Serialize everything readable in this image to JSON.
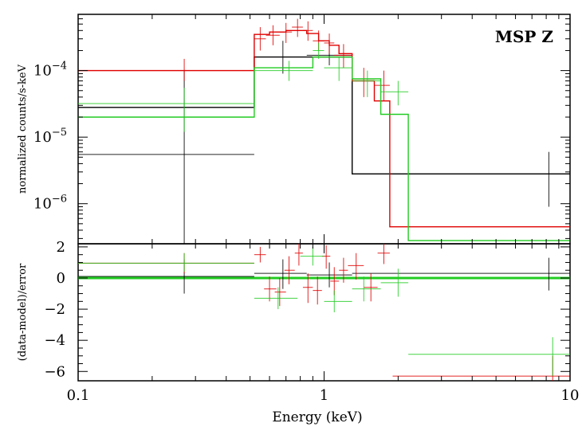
{
  "chart_data": [
    {
      "type": "line",
      "panel": "spectrum",
      "title": "MSP Z",
      "xlabel": "",
      "ylabel": "normalized counts/s-keV",
      "x_scale": "log",
      "y_scale": "log",
      "xlim": [
        0.1,
        10
      ],
      "ylim": [
        2.5e-07,
        0.0007
      ],
      "y_ticks": [
        {
          "value": 1e-06,
          "base": "10",
          "exp": "−6"
        },
        {
          "value": 1e-05,
          "base": "10",
          "exp": "−5"
        },
        {
          "value": 0.0001,
          "base": "10",
          "exp": "−4"
        }
      ],
      "series": [
        {
          "color": "#000000",
          "model": {
            "x": [
              0.1,
              0.52,
              0.52,
              1.3,
              1.3,
              10
            ],
            "y": [
              2.8e-05,
              2.8e-05,
              0.00016,
              0.00016,
              2.8e-06,
              2.8e-06
            ]
          },
          "points": [
            {
              "x": 0.27,
              "y": 5.5e-06,
              "xlo": 0.1,
              "xhi": 0.52,
              "ylo": 2.5e-07,
              "yhi": 0.0001
            },
            {
              "x": 0.68,
              "y": 0.00016,
              "xlo": 0.52,
              "xhi": 0.85,
              "ylo": 9e-05,
              "yhi": 0.00028
            },
            {
              "x": 1.05,
              "y": 0.00017,
              "xlo": 0.85,
              "xhi": 1.3,
              "ylo": 0.00012,
              "yhi": 0.00024
            },
            {
              "x": 8.2,
              "y": 2.8e-06,
              "xlo": 1.3,
              "xhi": 10,
              "ylo": 9e-07,
              "yhi": 6e-06
            }
          ]
        },
        {
          "color": "#e00000",
          "model": {
            "x": [
              0.1,
              0.52,
              0.52,
              0.6,
              0.6,
              0.7,
              0.7,
              0.85,
              0.85,
              0.95,
              0.95,
              1.05,
              1.05,
              1.15,
              1.15,
              1.3,
              1.3,
              1.6,
              1.6,
              1.85,
              1.85,
              10
            ],
            "y": [
              0.0001,
              0.0001,
              0.00035,
              0.00035,
              0.00038,
              0.00038,
              0.0004,
              0.0004,
              0.00036,
              0.00036,
              0.00028,
              0.00028,
              0.00024,
              0.00024,
              0.00018,
              0.00018,
              7e-05,
              7e-05,
              3.5e-05,
              3.5e-05,
              4.5e-07,
              4.5e-07
            ]
          },
          "points": [
            {
              "x": 0.27,
              "y": 0.0001,
              "xlo": 0.1,
              "xhi": 0.52,
              "ylo": 7e-05,
              "yhi": 0.00015
            },
            {
              "x": 0.55,
              "y": 0.0003,
              "xlo": 0.52,
              "xhi": 0.58,
              "ylo": 0.0002,
              "yhi": 0.00045
            },
            {
              "x": 0.62,
              "y": 0.00034,
              "xlo": 0.58,
              "xhi": 0.66,
              "ylo": 0.00024,
              "yhi": 0.00048
            },
            {
              "x": 0.7,
              "y": 0.00038,
              "xlo": 0.66,
              "xhi": 0.74,
              "ylo": 0.00026,
              "yhi": 0.00052
            },
            {
              "x": 0.78,
              "y": 0.00045,
              "xlo": 0.74,
              "xhi": 0.82,
              "ylo": 0.00032,
              "yhi": 0.0006
            },
            {
              "x": 0.86,
              "y": 0.0004,
              "xlo": 0.82,
              "xhi": 0.9,
              "ylo": 0.00028,
              "yhi": 0.00055
            },
            {
              "x": 0.95,
              "y": 0.00028,
              "xlo": 0.9,
              "xhi": 1.0,
              "ylo": 0.0002,
              "yhi": 0.0004
            },
            {
              "x": 1.05,
              "y": 0.00026,
              "xlo": 1.0,
              "xhi": 1.1,
              "ylo": 0.00018,
              "yhi": 0.00036
            },
            {
              "x": 1.2,
              "y": 0.00017,
              "xlo": 1.1,
              "xhi": 1.3,
              "ylo": 0.00011,
              "yhi": 0.00025
            },
            {
              "x": 1.45,
              "y": 7e-05,
              "xlo": 1.3,
              "xhi": 1.6,
              "ylo": 4e-05,
              "yhi": 0.00011
            },
            {
              "x": 1.75,
              "y": 6e-05,
              "xlo": 1.6,
              "xhi": 1.85,
              "ylo": 3.5e-05,
              "yhi": 0.0001
            }
          ]
        },
        {
          "color": "#22cc22",
          "model": {
            "x": [
              0.1,
              0.52,
              0.52,
              0.9,
              0.9,
              1.3,
              1.3,
              1.7,
              1.7,
              2.2,
              2.2,
              10
            ],
            "y": [
              2e-05,
              2e-05,
              0.00011,
              0.00011,
              0.00016,
              0.00016,
              7.5e-05,
              7.5e-05,
              2.2e-05,
              2.2e-05,
              2.8e-07,
              2.8e-07
            ]
          },
          "points": [
            {
              "x": 0.27,
              "y": 3.2e-05,
              "xlo": 0.1,
              "xhi": 0.52,
              "ylo": 1.2e-05,
              "yhi": 5.5e-05
            },
            {
              "x": 0.72,
              "y": 0.0001,
              "xlo": 0.52,
              "xhi": 0.9,
              "ylo": 7e-05,
              "yhi": 0.00014
            },
            {
              "x": 0.95,
              "y": 0.0002,
              "xlo": 0.9,
              "xhi": 1.0,
              "ylo": 0.00015,
              "yhi": 0.00026
            },
            {
              "x": 1.15,
              "y": 0.00011,
              "xlo": 1.0,
              "xhi": 1.3,
              "ylo": 7e-05,
              "yhi": 0.00016
            },
            {
              "x": 1.5,
              "y": 7e-05,
              "xlo": 1.3,
              "xhi": 1.7,
              "ylo": 4e-05,
              "yhi": 0.0001
            },
            {
              "x": 2.0,
              "y": 4.8e-05,
              "xlo": 1.7,
              "xhi": 2.2,
              "ylo": 3e-05,
              "yhi": 7e-05
            }
          ]
        }
      ]
    },
    {
      "type": "scatter",
      "panel": "residuals",
      "title": "",
      "xlabel": "Energy (keV)",
      "ylabel": "(data-model)/error",
      "x_scale": "log",
      "xlim": [
        0.1,
        10
      ],
      "ylim": [
        -6.6,
        2.2
      ],
      "x_ticks": [
        {
          "value": 0.1,
          "label": "0.1"
        },
        {
          "value": 1,
          "label": "1"
        },
        {
          "value": 10,
          "label": "10"
        }
      ],
      "y_ticks": [
        {
          "value": -6,
          "label": "−6"
        },
        {
          "value": -4,
          "label": "−4"
        },
        {
          "value": -2,
          "label": "−2"
        },
        {
          "value": 0,
          "label": "0"
        },
        {
          "value": 2,
          "label": "2"
        }
      ],
      "zero_line_color": "#22cc22",
      "series": [
        {
          "color": "#000000",
          "points": [
            {
              "x": 0.27,
              "y": 0.1,
              "xlo": 0.1,
              "xhi": 0.52,
              "ylo": -1.0,
              "yhi": 1.2
            },
            {
              "x": 0.68,
              "y": 0.3,
              "xlo": 0.52,
              "xhi": 0.85,
              "ylo": -0.7,
              "yhi": 1.2
            },
            {
              "x": 1.05,
              "y": 0.2,
              "xlo": 0.85,
              "xhi": 1.3,
              "ylo": -0.6,
              "yhi": 1.0
            },
            {
              "x": 8.2,
              "y": 0.3,
              "xlo": 1.3,
              "xhi": 10,
              "ylo": -0.8,
              "yhi": 1.3
            }
          ]
        },
        {
          "color": "#e00000",
          "points": [
            {
              "x": 0.27,
              "y": 0.95,
              "xlo": 0.1,
              "xhi": 0.52,
              "ylo": 0.3,
              "yhi": 1.6
            },
            {
              "x": 0.55,
              "y": 1.5,
              "xlo": 0.52,
              "xhi": 0.58,
              "ylo": 1.0,
              "yhi": 2.0
            },
            {
              "x": 0.6,
              "y": -0.7,
              "xlo": 0.57,
              "xhi": 0.64,
              "ylo": -1.5,
              "yhi": 0.1
            },
            {
              "x": 0.66,
              "y": -0.9,
              "xlo": 0.63,
              "xhi": 0.7,
              "ylo": -1.8,
              "yhi": 0.0
            },
            {
              "x": 0.72,
              "y": 0.5,
              "xlo": 0.69,
              "xhi": 0.76,
              "ylo": -0.4,
              "yhi": 1.4
            },
            {
              "x": 0.79,
              "y": 1.6,
              "xlo": 0.76,
              "xhi": 0.82,
              "ylo": 0.8,
              "yhi": 2.2
            },
            {
              "x": 0.86,
              "y": -0.6,
              "xlo": 0.82,
              "xhi": 0.9,
              "ylo": -1.6,
              "yhi": 0.3
            },
            {
              "x": 0.94,
              "y": -0.8,
              "xlo": 0.9,
              "xhi": 0.98,
              "ylo": -1.7,
              "yhi": 0.1
            },
            {
              "x": 1.02,
              "y": 1.4,
              "xlo": 0.98,
              "xhi": 1.06,
              "ylo": 0.6,
              "yhi": 2.1
            },
            {
              "x": 1.1,
              "y": -0.2,
              "xlo": 1.06,
              "xhi": 1.15,
              "ylo": -1.1,
              "yhi": 0.7
            },
            {
              "x": 1.2,
              "y": 0.5,
              "xlo": 1.15,
              "xhi": 1.25,
              "ylo": -0.3,
              "yhi": 1.3
            },
            {
              "x": 1.35,
              "y": 0.8,
              "xlo": 1.25,
              "xhi": 1.45,
              "ylo": -0.1,
              "yhi": 1.6
            },
            {
              "x": 1.55,
              "y": -0.6,
              "xlo": 1.45,
              "xhi": 1.65,
              "ylo": -1.5,
              "yhi": 0.3
            },
            {
              "x": 1.75,
              "y": 1.6,
              "xlo": 1.65,
              "xhi": 1.85,
              "ylo": 0.9,
              "yhi": 2.2
            },
            {
              "x": 8.5,
              "y": -6.3,
              "xlo": 1.9,
              "xhi": 10,
              "ylo": -6.6,
              "yhi": -5.0
            }
          ]
        },
        {
          "color": "#22cc22",
          "points": [
            {
              "x": 0.27,
              "y": 0.95,
              "xlo": 0.1,
              "xhi": 0.52,
              "ylo": 0.4,
              "yhi": 1.6
            },
            {
              "x": 0.65,
              "y": -1.3,
              "xlo": 0.52,
              "xhi": 0.78,
              "ylo": -2.0,
              "yhi": -0.6
            },
            {
              "x": 0.9,
              "y": 1.4,
              "xlo": 0.8,
              "xhi": 1.0,
              "ylo": 0.8,
              "yhi": 2.0
            },
            {
              "x": 1.1,
              "y": -1.5,
              "xlo": 1.0,
              "xhi": 1.3,
              "ylo": -2.2,
              "yhi": -0.8
            },
            {
              "x": 1.45,
              "y": -0.7,
              "xlo": 1.3,
              "xhi": 1.7,
              "ylo": -1.5,
              "yhi": 0.1
            },
            {
              "x": 2.0,
              "y": -0.3,
              "xlo": 1.7,
              "xhi": 2.2,
              "ylo": -1.2,
              "yhi": 0.6
            },
            {
              "x": 8.5,
              "y": -4.9,
              "xlo": 2.2,
              "xhi": 10,
              "ylo": -6.3,
              "yhi": -3.8
            }
          ]
        }
      ]
    }
  ]
}
